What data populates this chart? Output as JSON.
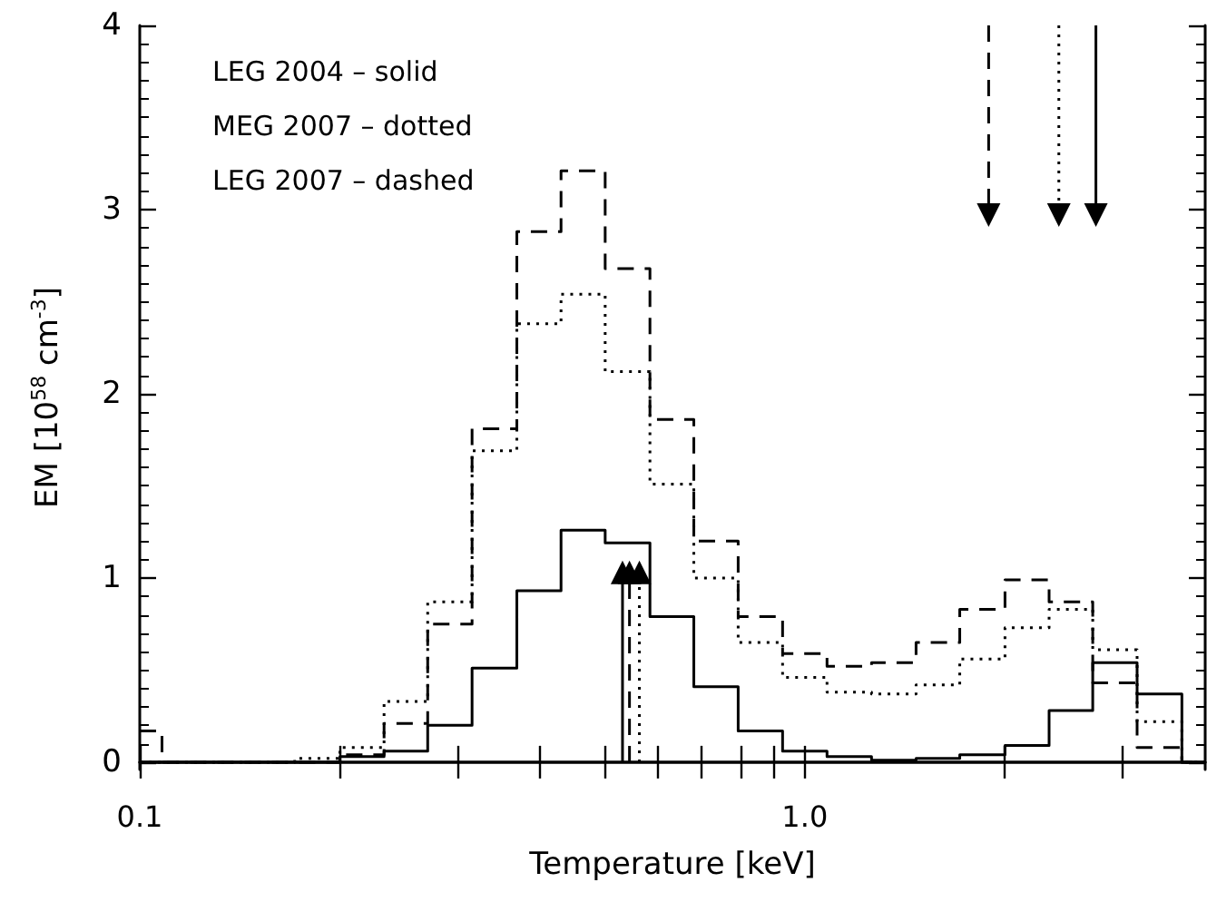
{
  "chart_data": {
    "type": "histogram",
    "xlabel": "Temperature [keV]",
    "ylabel": "EM [10$^{58}$ cm$^{-3}$]",
    "annotations": [
      "LEG 2004 – solid",
      "MEG 2007 – dotted",
      "LEG 2007 – dashed"
    ],
    "log": "x",
    "xlim": [
      0.1,
      4
    ],
    "xticks": [
      {
        "value": 0.1,
        "label": "0.1"
      },
      {
        "value": 0.2,
        "label": null
      },
      {
        "value": 0.3,
        "label": null
      },
      {
        "value": 0.4,
        "label": null
      },
      {
        "value": 0.5,
        "label": null
      },
      {
        "value": 0.6,
        "label": null
      },
      {
        "value": 0.7,
        "label": null
      },
      {
        "value": 0.8,
        "label": null
      },
      {
        "value": 0.9,
        "label": null
      },
      {
        "value": 1,
        "label": "1.0"
      },
      {
        "value": 2,
        "label": null
      },
      {
        "value": 3,
        "label": null
      }
    ],
    "ylim": [
      -0.04,
      4
    ],
    "yticks": [
      0,
      1,
      2,
      3,
      4
    ],
    "bins": [
      0.1,
      0.108,
      0.171,
      0.2,
      0.233,
      0.271,
      0.316,
      0.369,
      0.43,
      0.501,
      0.585,
      0.681,
      0.794,
      0.926,
      1.08,
      1.26,
      1.47,
      1.71,
      2.0,
      2.33,
      2.71,
      3.16,
      3.69,
      4.0
    ],
    "series": [
      {
        "color": "#000000",
        "line_style": "solid",
        "values": [
          0,
          0,
          0,
          0.03,
          0.06,
          0.2,
          0.51,
          0.93,
          1.26,
          1.19,
          0.79,
          0.41,
          0.17,
          0.06,
          0.03,
          0.01,
          0.02,
          0.04,
          0.09,
          0.28,
          0.54,
          0.37,
          0
        ]
      },
      {
        "color": "#000000",
        "line_style": "dotted",
        "values": [
          0,
          0,
          0.02,
          0.08,
          0.33,
          0.87,
          1.69,
          2.38,
          2.54,
          2.12,
          1.51,
          1.0,
          0.65,
          0.46,
          0.38,
          0.37,
          0.42,
          0.56,
          0.73,
          0.83,
          0.61,
          0.22,
          0
        ]
      },
      {
        "color": "#000000",
        "line_style": "dashed",
        "values": [
          0.17,
          0,
          0,
          0.04,
          0.21,
          0.75,
          1.81,
          2.88,
          3.21,
          2.68,
          1.86,
          1.2,
          0.79,
          0.59,
          0.52,
          0.54,
          0.65,
          0.83,
          0.99,
          0.87,
          0.43,
          0.08,
          0
        ]
      },
      {
        "type": "line",
        "color": "#000000",
        "line_style": "dashed",
        "marker": "triangle",
        "x": [
          1.89,
          1.89
        ],
        "values": [
          4,
          2.97
        ]
      },
      {
        "type": "line",
        "color": "#000000",
        "line_style": "dotted",
        "marker": "triangle",
        "x": [
          2.41,
          2.41
        ],
        "values": [
          4,
          2.97
        ]
      },
      {
        "type": "line",
        "color": "#000000",
        "line_style": "solid",
        "marker": "triangle",
        "x": [
          2.74,
          2.74
        ],
        "values": [
          4,
          2.97
        ]
      },
      {
        "type": "line",
        "color": "#000000",
        "line_style": "solid",
        "marker": "triangle",
        "x": [
          0.532,
          0.532
        ],
        "values": [
          0,
          1.03
        ]
      },
      {
        "type": "line",
        "color": "#000000",
        "line_style": "dashed",
        "marker": "triangle",
        "x": [
          0.545,
          0.545
        ],
        "values": [
          0,
          1.03
        ]
      },
      {
        "type": "line",
        "color": "#000000",
        "line_style": "dotted",
        "marker": "triangle",
        "x": [
          0.564,
          0.564
        ],
        "values": [
          0,
          1.03
        ]
      }
    ]
  }
}
